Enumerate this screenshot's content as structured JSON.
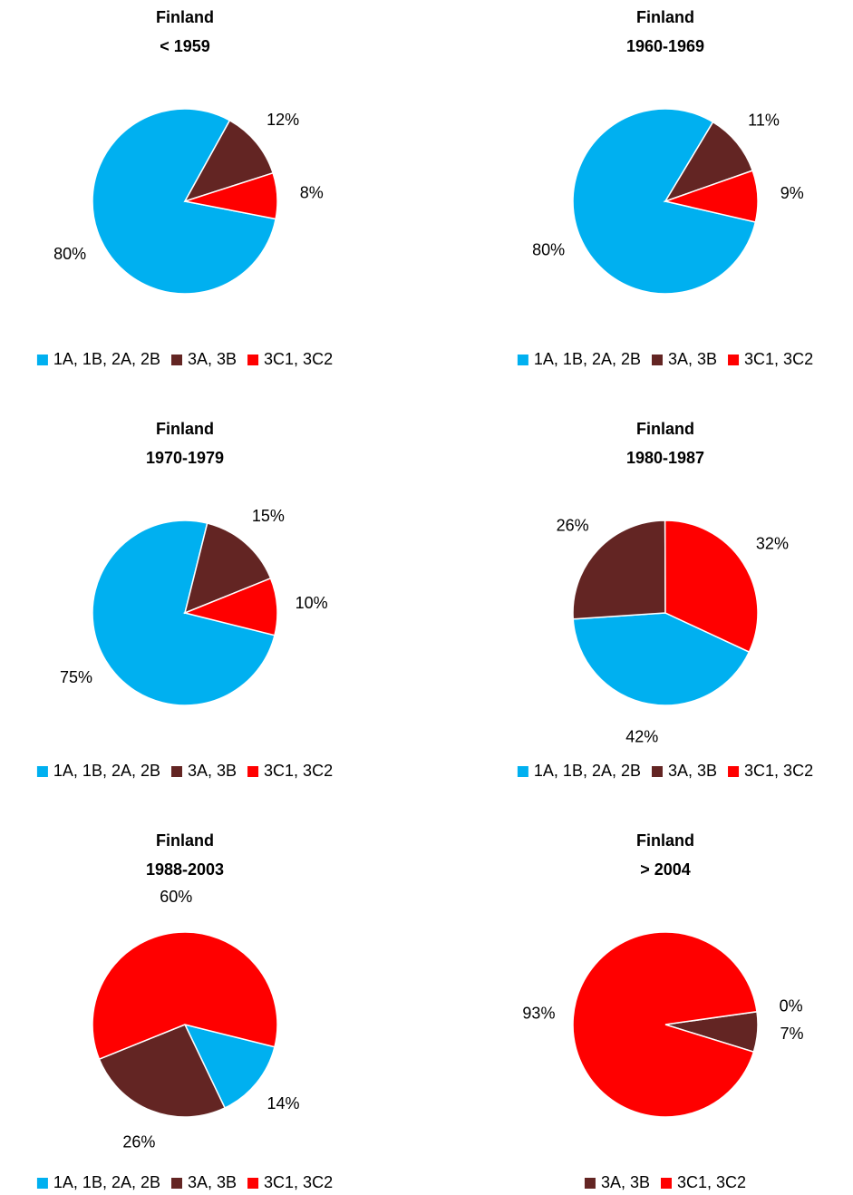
{
  "chart_data": [
    {
      "type": "pie",
      "title": "Finland",
      "subtitle": "< 1959",
      "categories": [
        "1A, 1B, 2A, 2B",
        "3A, 3B",
        "3C1, 3C2"
      ],
      "values": [
        80,
        12,
        8
      ],
      "value_labels": [
        "80%",
        "12%",
        "8%"
      ],
      "colors": [
        "#00b0f0",
        "#632523",
        "#ff0000"
      ],
      "start_angle": 101,
      "legend": "bottom"
    },
    {
      "type": "pie",
      "title": "Finland",
      "subtitle": "1960-1969",
      "categories": [
        "1A, 1B, 2A, 2B",
        "3A, 3B",
        "3C1, 3C2"
      ],
      "values": [
        80,
        11,
        9
      ],
      "value_labels": [
        "80%",
        "11%",
        "9%"
      ],
      "colors": [
        "#00b0f0",
        "#632523",
        "#ff0000"
      ],
      "start_angle": 103,
      "legend": "bottom"
    },
    {
      "type": "pie",
      "title": "Finland",
      "subtitle": "1970-1979",
      "categories": [
        "1A, 1B, 2A, 2B",
        "3A, 3B",
        "3C1, 3C2"
      ],
      "values": [
        75,
        15,
        10
      ],
      "value_labels": [
        "75%",
        "15%",
        "10%"
      ],
      "colors": [
        "#00b0f0",
        "#632523",
        "#ff0000"
      ],
      "start_angle": 104,
      "legend": "bottom"
    },
    {
      "type": "pie",
      "title": "Finland",
      "subtitle": "1980-1987",
      "categories": [
        "1A, 1B, 2A, 2B",
        "3A, 3B",
        "3C1, 3C2"
      ],
      "values": [
        42,
        26,
        32
      ],
      "value_labels": [
        "42%",
        "26%",
        "32%"
      ],
      "colors": [
        "#00b0f0",
        "#632523",
        "#ff0000"
      ],
      "start_angle": 115,
      "legend": "bottom"
    },
    {
      "type": "pie",
      "title": "Finland",
      "subtitle": "1988-2003",
      "categories": [
        "1A, 1B, 2A, 2B",
        "3A, 3B",
        "3C1, 3C2"
      ],
      "values": [
        14,
        26,
        60
      ],
      "value_labels": [
        "14%",
        "26%",
        "60%"
      ],
      "colors": [
        "#00b0f0",
        "#632523",
        "#ff0000"
      ],
      "start_angle": 104,
      "legend": "bottom"
    },
    {
      "type": "pie",
      "title": "Finland",
      "subtitle": "> 2004",
      "categories": [
        null,
        "3A, 3B",
        "3C1, 3C2"
      ],
      "values": [
        0,
        7,
        93
      ],
      "value_labels": [
        "0%",
        "7%",
        "93%"
      ],
      "colors": [
        "#00b0f0",
        "#632523",
        "#ff0000"
      ],
      "start_angle": 82,
      "legend": "bottom"
    }
  ]
}
